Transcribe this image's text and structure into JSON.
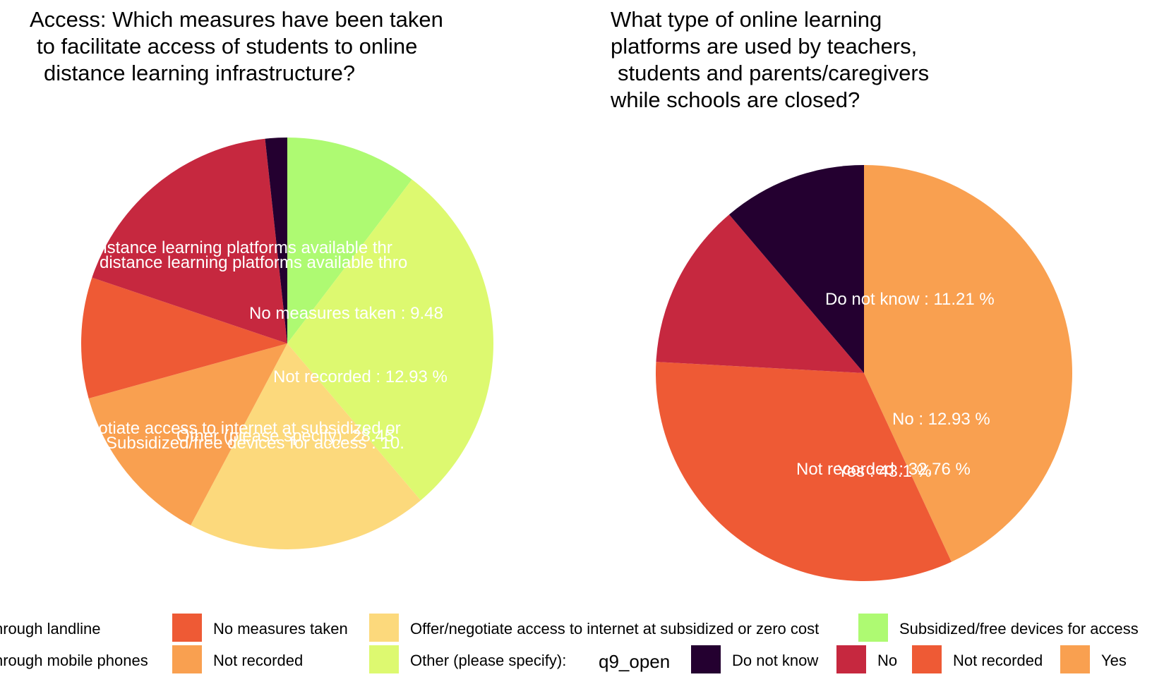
{
  "chart_data": [
    {
      "type": "pie",
      "title_lines": [
        "Access: Which measures have been taken",
        "to facilitate access of students to online",
        "distance learning infrastructure?"
      ],
      "slices": [
        {
          "label": "Subsidized/free devices for access",
          "percent": 10.34,
          "color": "#aefa72"
        },
        {
          "label": "Other (please specify):",
          "percent": 28.45,
          "color": "#ddf970"
        },
        {
          "label": "Offer/negotiate access to internet at subsidized or zero cost",
          "percent": 18.97,
          "color": "#fcd97c"
        },
        {
          "label": "Not recorded",
          "percent": 12.93,
          "color": "#f9a050"
        },
        {
          "label": "No measures taken",
          "percent": 9.48,
          "color": "#ee5a35"
        },
        {
          "label": "Make distance learning platforms available through mobile phones",
          "percent": 18.1,
          "color": "#c6283f"
        },
        {
          "label": "Make distance learning platforms available through landline",
          "percent": 1.72,
          "color": "#240030"
        }
      ],
      "visible_labels": [
        "distance learning platforms available thr",
        "distance learning platforms available thro",
        "No measures taken :  9.48",
        "Not recorded :  12.93  %",
        "gotiate access to internet at subsidized or",
        "Other (please specify):  28.45",
        "Subsidized/free devices for access :  10."
      ]
    },
    {
      "type": "pie",
      "title_lines": [
        "What type of online learning",
        "platforms are used by teachers,",
        "students and parents/caregivers",
        "while schools are closed?"
      ],
      "slices": [
        {
          "label": "Yes",
          "percent": 43.1,
          "color": "#f9a050"
        },
        {
          "label": "Not recorded",
          "percent": 32.76,
          "color": "#ee5a35"
        },
        {
          "label": "No",
          "percent": 12.93,
          "color": "#c6283f"
        },
        {
          "label": "Do not know",
          "percent": 11.21,
          "color": "#240030"
        }
      ],
      "visible_labels": [
        "Do not know :  11.21  %",
        "No :  12.93  %",
        "Not recorded :  32.76  %",
        "Yes :  43.1  %"
      ]
    }
  ],
  "legend": {
    "row1": [
      {
        "text": "hrough landline",
        "color": "#240030"
      },
      {
        "text": "No measures taken",
        "color": "#ee5a35"
      },
      {
        "text": "Offer/negotiate access to internet at subsidized or zero cost",
        "color": "#fcd97c"
      },
      {
        "text": "Subsidized/free devices for access",
        "color": "#aefa72"
      }
    ],
    "row2": [
      {
        "text": "hrough mobile phones",
        "color": "#c6283f"
      },
      {
        "text": "Not recorded",
        "color": "#f9a050"
      },
      {
        "text": "Other (please specify):",
        "color": "#ddf970"
      }
    ],
    "q9_title": "q9_open",
    "q9_items": [
      {
        "text": "Do not know",
        "color": "#240030"
      },
      {
        "text": "No",
        "color": "#c6283f"
      },
      {
        "text": "Not recorded",
        "color": "#ee5a35"
      },
      {
        "text": "Yes",
        "color": "#f9a050"
      }
    ]
  }
}
